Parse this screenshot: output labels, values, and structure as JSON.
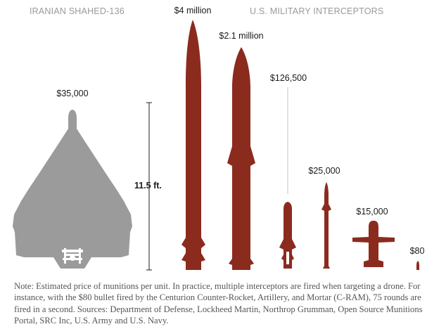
{
  "headers": {
    "drone": "IRANIAN SHAHED-136",
    "interceptors": "U.S. MILITARY INTERCEPTORS"
  },
  "scale_label": "11.5 ft.",
  "munitions": [
    {
      "id": "shahed",
      "price": "$35,000"
    },
    {
      "id": "interceptor-1",
      "price": "$4 million"
    },
    {
      "id": "interceptor-2",
      "price": "$2.1 million"
    },
    {
      "id": "interceptor-3",
      "price": "$126,500"
    },
    {
      "id": "interceptor-4",
      "price": "$25,000"
    },
    {
      "id": "interceptor-5",
      "price": "$15,000"
    },
    {
      "id": "interceptor-6",
      "price": "$80"
    }
  ],
  "note": "Note: Estimated price of munitions per unit. In practice, multiple interceptors are fired when targeting a drone. For instance, with the $80 bullet fired by the Centurion Counter-Rocket, Artillery, and Mortar (C-RAM), 75 rounds are fired in a second. Sources: Department of Defense, Lockheed Martin, Northrop Grumman, Open Source Munitions Portal, SRC Inc, U.S. Army and U.S. Navy.",
  "colors": {
    "drone": "#9b9b9b",
    "interceptor": "#8b2b1e",
    "header_text": "#9a9a9a",
    "note_text": "#555555"
  }
}
